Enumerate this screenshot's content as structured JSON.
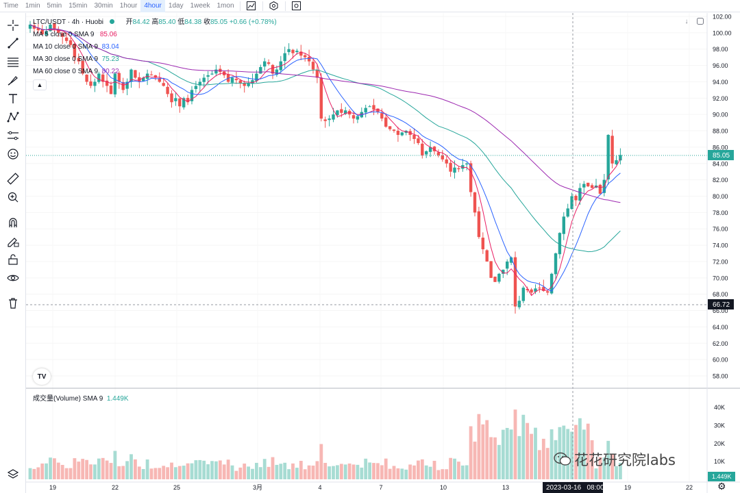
{
  "toolbar": {
    "timeframes": [
      "Time",
      "1min",
      "5min",
      "15min",
      "30min",
      "1hour",
      "4hour",
      "1day",
      "1week",
      "1mon"
    ],
    "active_timeframe": "4hour",
    "icons": [
      "indicators-icon",
      "settings-icon",
      "fullscreen-icon"
    ]
  },
  "legend": {
    "title": "LTC/USDT · 4h · Huobi",
    "open_label": "开",
    "open": "84.42",
    "high_label": "高",
    "high": "85.40",
    "low_label": "低",
    "low": "84.38",
    "close_label": "收",
    "close": "85.05",
    "change": "+0.66 (+0.78%)",
    "ma": [
      {
        "label": "MA 5 close 0 SMA 9",
        "value": "85.06",
        "color": "#e91e63"
      },
      {
        "label": "MA 10 close 0 SMA 9",
        "value": "83.04",
        "color": "#2962ff"
      },
      {
        "label": "MA 30 close 0 SMA 9",
        "value": "75.23",
        "color": "#26a69a"
      },
      {
        "label": "MA 60 close 0 SMA 9",
        "value": "80.22",
        "color": "#9c27b0"
      }
    ],
    "collapse_icon": "chevron-up-icon"
  },
  "volume_legend": {
    "label": "成交量(Volume) SMA 9",
    "value": "1.449K"
  },
  "price_axis": [
    "102.00",
    "100.00",
    "98.00",
    "96.00",
    "94.00",
    "92.00",
    "90.00",
    "88.00",
    "86.00",
    "84.00",
    "82.00",
    "80.00",
    "78.00",
    "76.00",
    "74.00",
    "72.00",
    "70.00",
    "68.00",
    "66.00",
    "64.00",
    "62.00",
    "60.00",
    "58.00"
  ],
  "current_price_tag": "85.05",
  "crosshair_price_tag": "66.72",
  "volume_axis": [
    "40K",
    "30K",
    "20K",
    "10K"
  ],
  "volume_value_tag": "1.449K",
  "time_axis": [
    "19",
    "22",
    "25",
    "3月",
    "4",
    "7",
    "10",
    "13",
    "19",
    "22"
  ],
  "crosshair_time_tag": "2023-03-16   08:00",
  "watermark": "花花研究院labs",
  "colors": {
    "up": "#26a69a",
    "down": "#ef5350",
    "up_vol": "#a7dcd3",
    "down_vol": "#f7b7b4",
    "accent": "#2962ff"
  },
  "chart_data": {
    "type": "candlestick",
    "title": "LTC/USDT · 4h · Huobi",
    "ylim": [
      57,
      102.5
    ],
    "closes": [
      101,
      100.5,
      100.3,
      99.8,
      100.2,
      101,
      100.5,
      100,
      99.5,
      99,
      98.5,
      97,
      96.5,
      95,
      94,
      93.5,
      94,
      95,
      94,
      93.5,
      92.5,
      95,
      94,
      93,
      94,
      95.5,
      94.5,
      94,
      94.5,
      95,
      94.8,
      94.5,
      94,
      93.5,
      92.5,
      91.5,
      92,
      91,
      92,
      91.5,
      93,
      93.5,
      94,
      94.5,
      94.8,
      95,
      95.5,
      95.2,
      94.8,
      94,
      94.5,
      94.2,
      93.8,
      93.5,
      93.8,
      94.2,
      95,
      95.8,
      96.5,
      96.2,
      95,
      95.5,
      96.5,
      97.5,
      98,
      97.5,
      97.8,
      97.2,
      97,
      96.5,
      95.5,
      94.5,
      89.5,
      89.2,
      89.5,
      90,
      90.5,
      90.2,
      90.5,
      90,
      89.5,
      89.8,
      90.3,
      90.8,
      91,
      90.6,
      90.3,
      89.5,
      88.5,
      88.2,
      88,
      87.5,
      87.8,
      88,
      87.5,
      87,
      86.5,
      85,
      85.5,
      86,
      85.5,
      85,
      84.5,
      84,
      83,
      83.5,
      83.3,
      83.8,
      84,
      80.5,
      78,
      75,
      73.5,
      72,
      70,
      69.5,
      70.5,
      71,
      72,
      72.5,
      66.5,
      67.2,
      68.8,
      68.5,
      68.2,
      68.7,
      68.8,
      68.4,
      68.2,
      70.5,
      73,
      75.5,
      77.5,
      78.5,
      80,
      79.5,
      81,
      81.5,
      81.2,
      81,
      81.3,
      80.3,
      82,
      87.5,
      84,
      84.4,
      85.05
    ],
    "ma": [
      "MA 5",
      "MA 10",
      "MA 30",
      "MA 60"
    ]
  }
}
